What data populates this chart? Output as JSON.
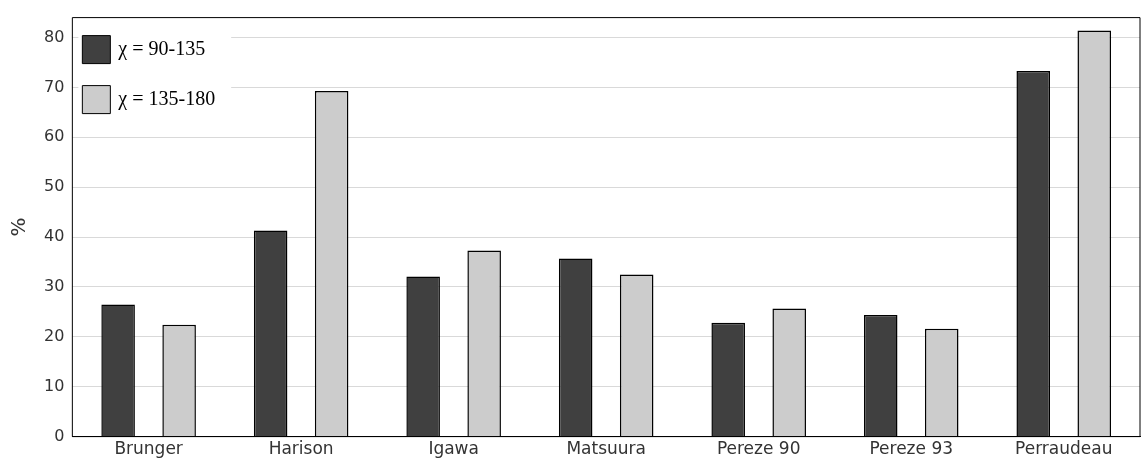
{
  "chart_data": {
    "type": "bar",
    "ylabel": "%",
    "categories": [
      "Brunger",
      "Harison",
      "Igawa",
      "Matsuura",
      "Pereze 90",
      "Pereze 93",
      "Perraudeau"
    ],
    "series": [
      {
        "name": "χ = 90-135",
        "color": "#404040",
        "values": [
          26.5,
          41.3,
          32.1,
          35.7,
          22.8,
          24.4,
          73.3
        ]
      },
      {
        "name": "χ = 135-180",
        "color": "#cccccc",
        "values": [
          22.4,
          69.3,
          37.3,
          32.5,
          25.7,
          21.6,
          81.4
        ]
      }
    ],
    "ylim": [
      0,
      84
    ],
    "yticks": [
      0,
      10,
      20,
      30,
      40,
      50,
      60,
      70,
      80
    ],
    "grid": "y",
    "legend": "top left"
  }
}
